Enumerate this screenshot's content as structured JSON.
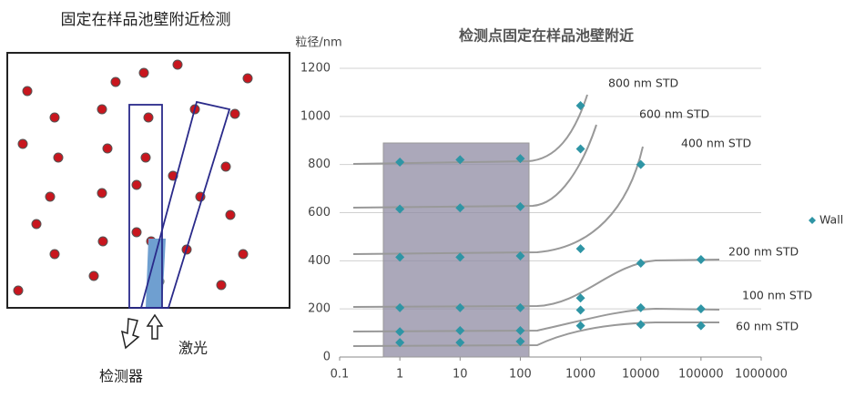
{
  "diagram": {
    "title": "固定在样品池壁附近检测",
    "laser_label": "激光",
    "detector_label": "检测器"
  },
  "chart_data": {
    "type": "scatter",
    "title": "检测点固定在样品池壁附近",
    "y_label": "粒径/nm",
    "log_x": true,
    "grid": true,
    "legend_position": "right",
    "xlim": [
      0.1,
      1000000
    ],
    "xticks": [
      0.1,
      1,
      10,
      100,
      1000,
      10000,
      100000,
      1000000
    ],
    "ylim": [
      0,
      1200
    ],
    "yticks": [
      0,
      200,
      400,
      600,
      800,
      1000,
      1200
    ],
    "series": [
      {
        "name": "Wall",
        "color": "#2f95a5",
        "x": [
          1,
          10,
          100,
          1000,
          1,
          10,
          100,
          1000,
          1,
          10,
          100,
          1000,
          10000,
          1,
          10,
          100,
          1000,
          10000,
          100000,
          1,
          10,
          100,
          1000,
          10000,
          100000,
          1,
          10,
          100,
          1000,
          10000,
          100000
        ],
        "values": [
          810,
          820,
          825,
          1045,
          615,
          620,
          625,
          865,
          415,
          415,
          420,
          450,
          800,
          205,
          205,
          205,
          245,
          390,
          405,
          105,
          110,
          110,
          195,
          205,
          200,
          60,
          60,
          65,
          130,
          135,
          130
        ]
      }
    ],
    "annotations": [
      "800 nm STD",
      "600 nm STD",
      "400 nm STD",
      "200 nm STD",
      "100 nm STD",
      "60 nm STD"
    ]
  }
}
